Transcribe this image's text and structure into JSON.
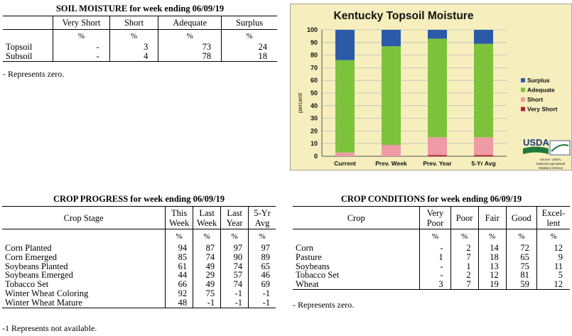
{
  "soil": {
    "title": "SOIL MOISTURE for week ending 06/09/19",
    "columns": [
      "",
      "Very Short",
      "Short",
      "Adequate",
      "Surplus"
    ],
    "units": [
      "",
      "%",
      "%",
      "%",
      "%"
    ],
    "rows": [
      [
        "Topsoil",
        "-",
        "3",
        "73",
        "24"
      ],
      [
        "Subsoil",
        "-",
        "4",
        "78",
        "18"
      ]
    ],
    "note": "- Represents zero."
  },
  "chart": {
    "title": "Kentucky Topsoil Moisture",
    "ylabel": "percent",
    "source": [
      "Source: USDA,",
      "National Agricultural",
      "Statistics Service"
    ],
    "logo_text": "USDA",
    "colors": {
      "background": "#f7eebd",
      "surplus": "#2b5ba8",
      "adequate": "#7ec23c",
      "short": "#ef9aa7",
      "very_short": "#b22030",
      "grid": "#bdbdbd"
    }
  },
  "chart_data": {
    "type": "bar",
    "stacked": true,
    "title": "Kentucky Topsoil Moisture",
    "xlabel": "",
    "ylabel": "percent",
    "ylim": [
      0,
      100
    ],
    "yticks": [
      0,
      10,
      20,
      30,
      40,
      50,
      60,
      70,
      80,
      90,
      100
    ],
    "grid": true,
    "legend_position": "right",
    "categories": [
      "Current",
      "Prev. Week",
      "Prev. Year",
      "5-Yr Avg"
    ],
    "series": [
      {
        "name": "Very Short",
        "color": "#b22030",
        "values": [
          0,
          0,
          1,
          1
        ]
      },
      {
        "name": "Short",
        "color": "#ef9aa7",
        "values": [
          3,
          9,
          14,
          14
        ]
      },
      {
        "name": "Adequate",
        "color": "#7ec23c",
        "values": [
          73,
          78,
          78,
          74
        ]
      },
      {
        "name": "Surplus",
        "color": "#2b5ba8",
        "values": [
          24,
          13,
          7,
          11
        ]
      }
    ],
    "legend_order": [
      "Surplus",
      "Adequate",
      "Short",
      "Very Short"
    ]
  },
  "progress": {
    "title": "CROP PROGRESS for week ending 06/09/19",
    "columns": [
      "Crop Stage",
      "This Week",
      "Last Week",
      "Last Year",
      "5-Yr Avg"
    ],
    "units": [
      "",
      "%",
      "%",
      "%",
      "%"
    ],
    "rows": [
      [
        "Corn Planted",
        "94",
        "87",
        "97",
        "97"
      ],
      [
        "Corn Emerged",
        "85",
        "74",
        "90",
        "89"
      ],
      [
        "Soybeans Planted",
        "61",
        "49",
        "74",
        "65"
      ],
      [
        "Soybeans Emerged",
        "44",
        "29",
        "57",
        "46"
      ],
      [
        "Tobacco Set",
        "66",
        "49",
        "74",
        "69"
      ],
      [
        "Winter Wheat Coloring",
        "92",
        "75",
        "-1",
        "-1"
      ],
      [
        "Winter Wheat Mature",
        "48",
        "-1",
        "-1",
        "-1"
      ]
    ],
    "note": "-1 Represents not available."
  },
  "conditions": {
    "title": "CROP CONDITIONS for week ending 06/09/19",
    "columns": [
      "Crop",
      "Very Poor",
      "Poor",
      "Fair",
      "Good",
      "Excel- lent"
    ],
    "units": [
      "",
      "%",
      "%",
      "%",
      "%",
      "%"
    ],
    "rows": [
      [
        "Corn",
        "-",
        "2",
        "14",
        "72",
        "12"
      ],
      [
        "Pasture",
        "1",
        "7",
        "18",
        "65",
        "9"
      ],
      [
        "Soybeans",
        "-",
        "1",
        "13",
        "75",
        "11"
      ],
      [
        "Tobacco Set",
        "-",
        "2",
        "12",
        "81",
        "5"
      ],
      [
        "Wheat",
        "3",
        "7",
        "19",
        "59",
        "12"
      ]
    ],
    "note": "- Represents zero."
  }
}
